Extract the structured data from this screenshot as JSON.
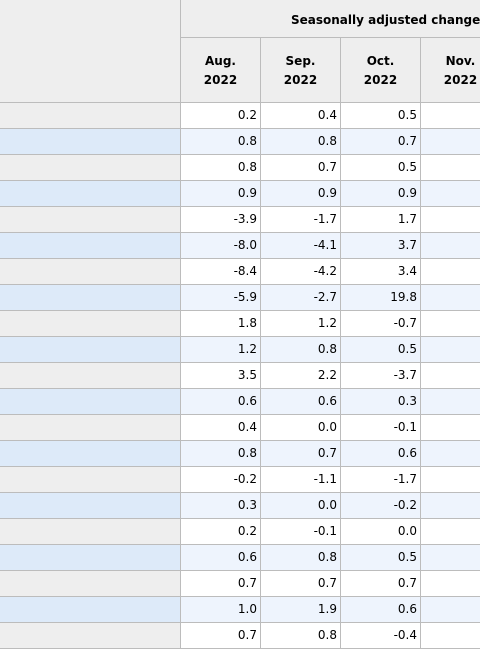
{
  "table": {
    "super_header": "Seasonally adjusted changes",
    "columns": [
      {
        "month": "Aug.",
        "year": "2022"
      },
      {
        "month": "Sep.",
        "year": "2022"
      },
      {
        "month": "Oct.",
        "year": "2022"
      },
      {
        "month": "Nov.",
        "year": "2022"
      }
    ],
    "rows": [
      [
        "0.2",
        "0.4",
        "0.5",
        ""
      ],
      [
        "0.8",
        "0.8",
        "0.7",
        ""
      ],
      [
        "0.8",
        "0.7",
        "0.5",
        ""
      ],
      [
        "0.9",
        "0.9",
        "0.9",
        ""
      ],
      [
        "-3.9",
        "-1.7",
        "1.7",
        "-"
      ],
      [
        "-8.0",
        "-4.1",
        "3.7",
        "-"
      ],
      [
        "-8.4",
        "-4.2",
        "3.4",
        "-"
      ],
      [
        "-5.9",
        "-2.7",
        "19.8",
        ""
      ],
      [
        "1.8",
        "1.2",
        "-0.7",
        "-"
      ],
      [
        "1.2",
        "0.8",
        "0.5",
        ""
      ],
      [
        "3.5",
        "2.2",
        "-3.7",
        "-"
      ],
      [
        "0.6",
        "0.6",
        "0.3",
        ""
      ],
      [
        "0.4",
        "0.0",
        "-0.1",
        "-"
      ],
      [
        "0.8",
        "0.7",
        "0.6",
        ""
      ],
      [
        "-0.2",
        "-1.1",
        "-1.7",
        "-"
      ],
      [
        "0.3",
        "0.0",
        "-0.2",
        ""
      ],
      [
        "0.2",
        "-0.1",
        "0.0",
        ""
      ],
      [
        "0.6",
        "0.8",
        "0.5",
        ""
      ],
      [
        "0.7",
        "0.7",
        "0.7",
        ""
      ],
      [
        "1.0",
        "1.9",
        "0.6",
        ""
      ],
      [
        "0.7",
        "0.8",
        "-0.4",
        "-"
      ]
    ]
  }
}
